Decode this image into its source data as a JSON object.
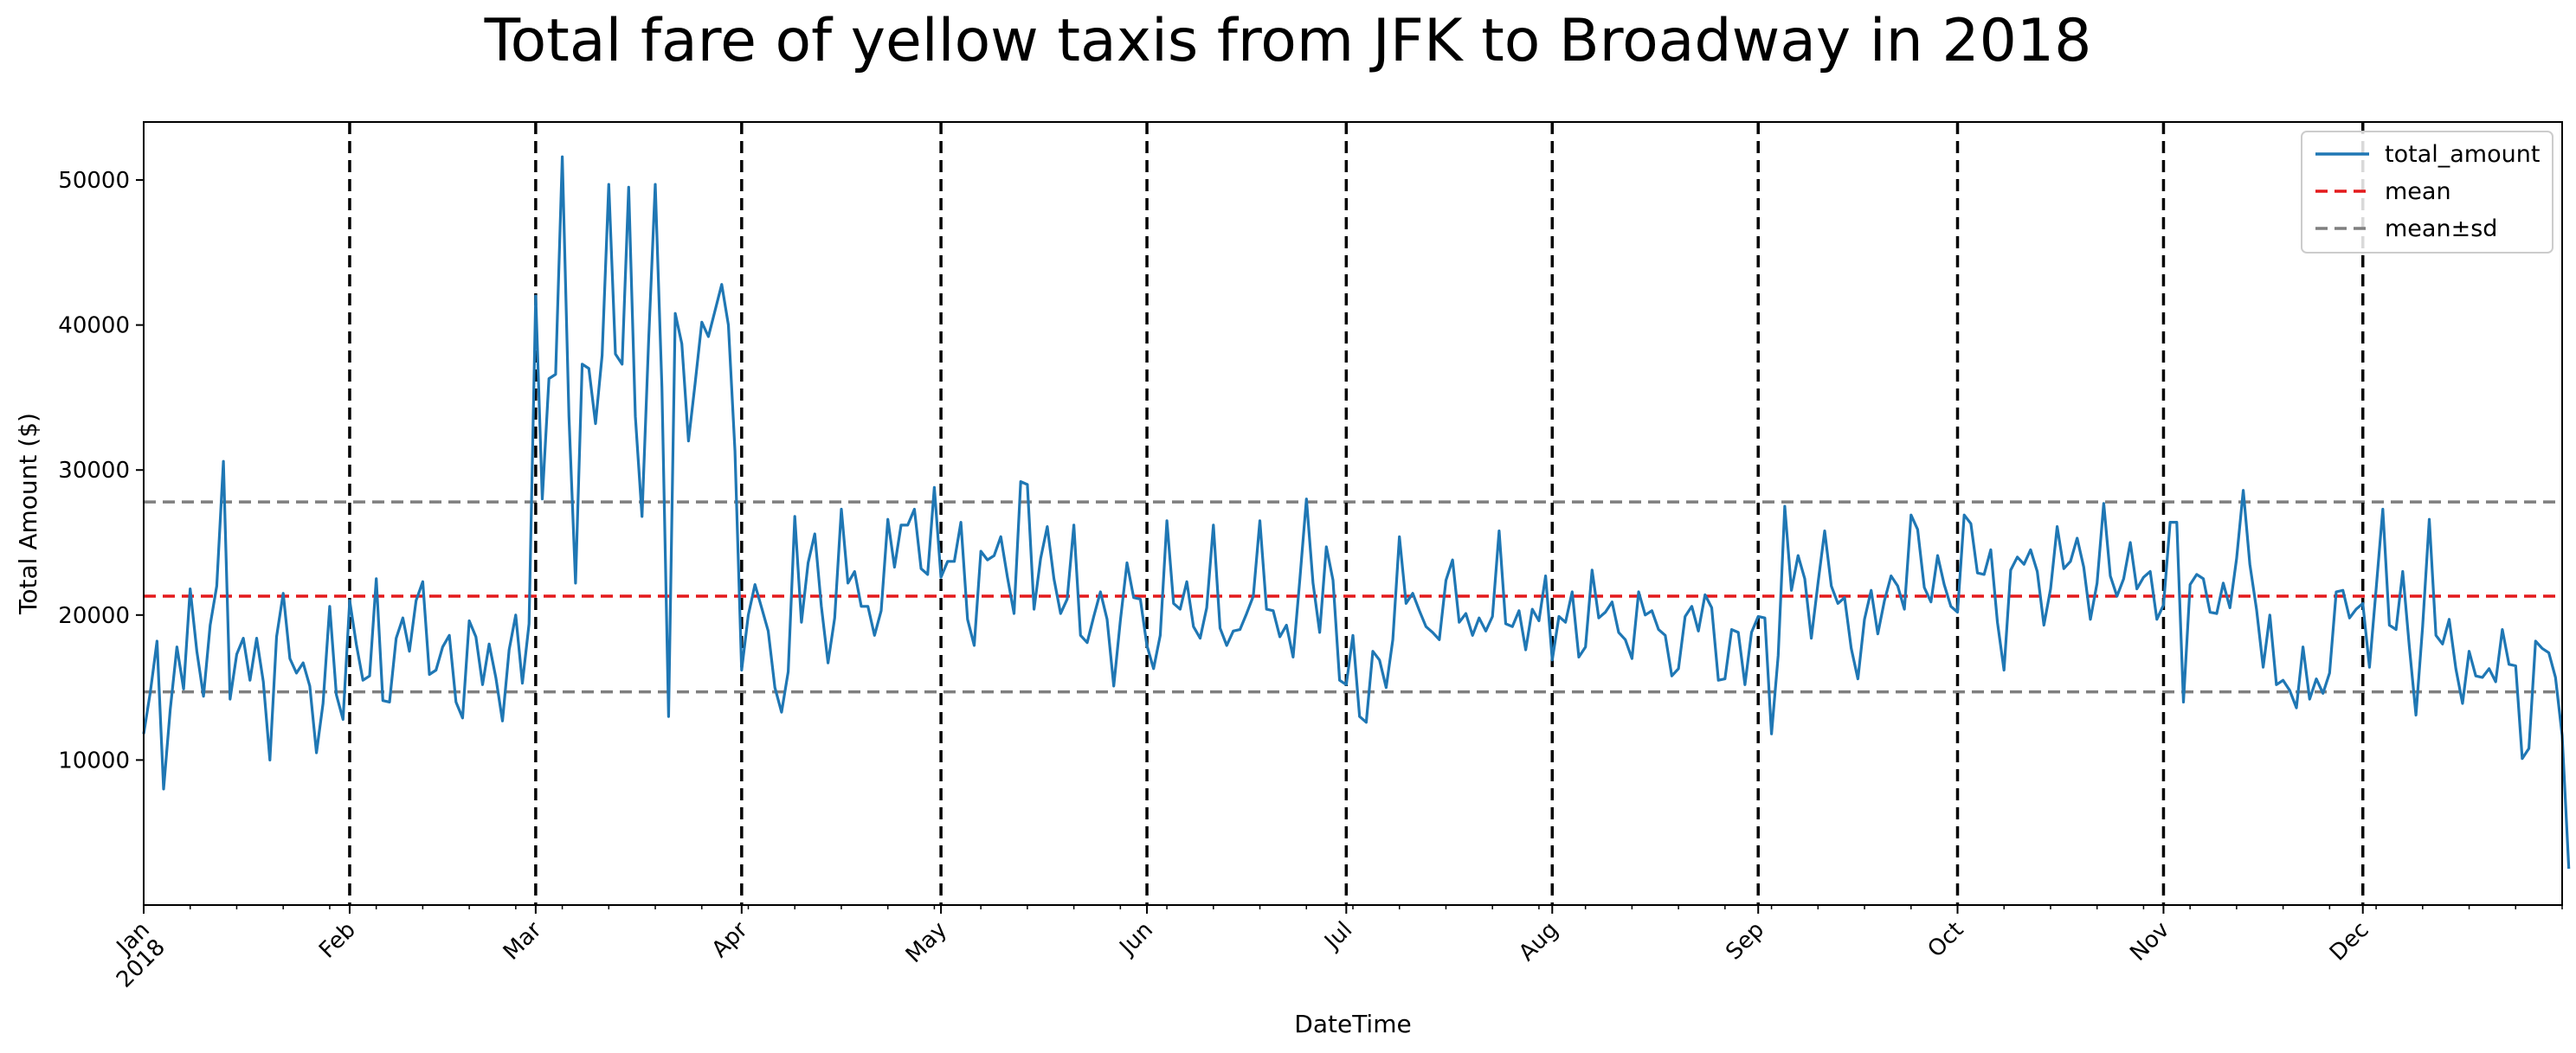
{
  "chart_data": {
    "type": "line",
    "title": "Total fare of yellow taxis from JFK to Broadway in 2018",
    "xlabel": "DateTime",
    "ylabel": "Total Amount ($)",
    "xlim": [
      "2018-01-01",
      "2018-12-31"
    ],
    "ylim": [
      0,
      54000
    ],
    "y_ticks": [
      10000,
      20000,
      30000,
      40000,
      50000
    ],
    "x_ticks": [
      {
        "date": "2018-01-01",
        "label": "Jan",
        "sublabel": "2018"
      },
      {
        "date": "2018-02-01",
        "label": "Feb"
      },
      {
        "date": "2018-03-01",
        "label": "Mar"
      },
      {
        "date": "2018-04-01",
        "label": "Apr"
      },
      {
        "date": "2018-05-01",
        "label": "May"
      },
      {
        "date": "2018-06-01",
        "label": "Jun"
      },
      {
        "date": "2018-07-01",
        "label": "Jul"
      },
      {
        "date": "2018-08-01",
        "label": "Aug"
      },
      {
        "date": "2018-09-01",
        "label": "Sep"
      },
      {
        "date": "2018-10-01",
        "label": "Oct"
      },
      {
        "date": "2018-11-01",
        "label": "Nov"
      },
      {
        "date": "2018-12-01",
        "label": "Dec"
      }
    ],
    "vlines": [
      "2018-02-01",
      "2018-03-01",
      "2018-04-01",
      "2018-05-01",
      "2018-06-01",
      "2018-07-01",
      "2018-08-01",
      "2018-09-01",
      "2018-10-01",
      "2018-11-01",
      "2018-12-01"
    ],
    "legend": {
      "position": "top-right",
      "entries": [
        "total_amount",
        "mean",
        "mean±sd"
      ]
    },
    "colors": {
      "series": "#1f77b4",
      "mean": "#e41a1c",
      "sd": "#7f7f7f",
      "vline": "#000000"
    },
    "mean": 21300,
    "mean_plus_sd": 27800,
    "mean_minus_sd": 14700,
    "series": [
      {
        "name": "total_amount",
        "start_date": "2018-01-01",
        "values": [
          11800,
          14700,
          18200,
          8000,
          13500,
          17800,
          14900,
          21800,
          17500,
          14400,
          19300,
          22000,
          30600,
          14200,
          17300,
          18400,
          15500,
          18400,
          15400,
          10000,
          18500,
          21500,
          17000,
          16000,
          16700,
          15100,
          10500,
          13900,
          20600,
          14500,
          12800,
          21000,
          18000,
          15500,
          15800,
          22500,
          14100,
          14000,
          18400,
          19800,
          17500,
          21000,
          22300,
          15900,
          16200,
          17800,
          18600,
          14000,
          12900,
          19600,
          18500,
          15200,
          18000,
          15700,
          12700,
          17600,
          20000,
          15300,
          19400,
          42000,
          28000,
          36300,
          36600,
          51600,
          33700,
          22200,
          37300,
          37000,
          33200,
          37900,
          49700,
          38000,
          37300,
          49500,
          33700,
          26800,
          39000,
          49700,
          35700,
          13000,
          40800,
          38700,
          32000,
          36000,
          40200,
          39200,
          41000,
          42800,
          40000,
          31300,
          16200,
          20000,
          22100,
          20500,
          18900,
          15000,
          13300,
          16100,
          26800,
          19500,
          23600,
          25600,
          20600,
          16700,
          19800,
          27300,
          22200,
          23000,
          20600,
          20600,
          18600,
          20300,
          26600,
          23300,
          26200,
          26200,
          27300,
          23200,
          22800,
          28800,
          22600,
          23700,
          23700,
          26400,
          19700,
          17900,
          24400,
          23800,
          24100,
          25400,
          22600,
          20100,
          29200,
          29000,
          20400,
          23900,
          26100,
          22500,
          20100,
          21100,
          26200,
          18600,
          18100,
          19900,
          21600,
          19700,
          15100,
          19600,
          23600,
          21200,
          21100,
          17900,
          16300,
          18600,
          26500,
          20800,
          20400,
          22300,
          19200,
          18400,
          20500,
          26200,
          19100,
          17900,
          18900,
          19000,
          20100,
          21300,
          26500,
          20400,
          20300,
          18500,
          19300,
          17100,
          22400,
          28000,
          22200,
          18800,
          24700,
          22400,
          15500,
          15200,
          18600,
          13000,
          12600,
          17500,
          16900,
          15000,
          18300,
          25400,
          20800,
          21500,
          20300,
          19200,
          18800,
          18300,
          22400,
          23800,
          19500,
          20100,
          18600,
          19800,
          18900,
          19900,
          25800,
          19400,
          19200,
          20300,
          17600,
          20400,
          19600,
          22700,
          16900,
          19900,
          19500,
          21600,
          17100,
          17800,
          23100,
          19800,
          20200,
          20900,
          18800,
          18300,
          17000,
          21600,
          20000,
          20300,
          19000,
          18600,
          15800,
          16300,
          19900,
          20600,
          18900,
          21400,
          20500,
          15500,
          15600,
          19000,
          18800,
          15200,
          18800,
          19900,
          19800,
          11800,
          17200,
          27500,
          21700,
          24100,
          22500,
          18400,
          22200,
          25800,
          22000,
          20800,
          21200,
          17700,
          15600,
          19700,
          21700,
          18700,
          21000,
          22700,
          22000,
          20400,
          26900,
          25900,
          21900,
          20900,
          24100,
          22100,
          20600,
          20200,
          26900,
          26300,
          22900,
          22800,
          24500,
          19500,
          16200,
          23100,
          24000,
          23500,
          24500,
          23000,
          19300,
          21800,
          26100,
          23200,
          23700,
          25300,
          23300,
          19700,
          22200,
          27700,
          22700,
          21300,
          22500,
          25000,
          21800,
          22600,
          23000,
          19700,
          20700,
          26400,
          26400,
          14000,
          22100,
          22800,
          22500,
          20200,
          20100,
          22200,
          20500,
          23900,
          28600,
          23500,
          20400,
          16400,
          20000,
          15200,
          15500,
          14800,
          13600,
          17800,
          14200,
          15600,
          14600,
          16000,
          21600,
          21700,
          19800,
          20400,
          20800,
          16400,
          21800,
          27300,
          19300,
          19000,
          23000,
          17800,
          13100,
          19200,
          26600,
          18600,
          18000,
          19700,
          16300,
          13900,
          17500,
          15800,
          15700,
          16300,
          15400,
          19000,
          16600,
          16500,
          10100,
          10800,
          18200,
          17700,
          17400,
          15700,
          11700,
          2500
        ]
      }
    ]
  }
}
